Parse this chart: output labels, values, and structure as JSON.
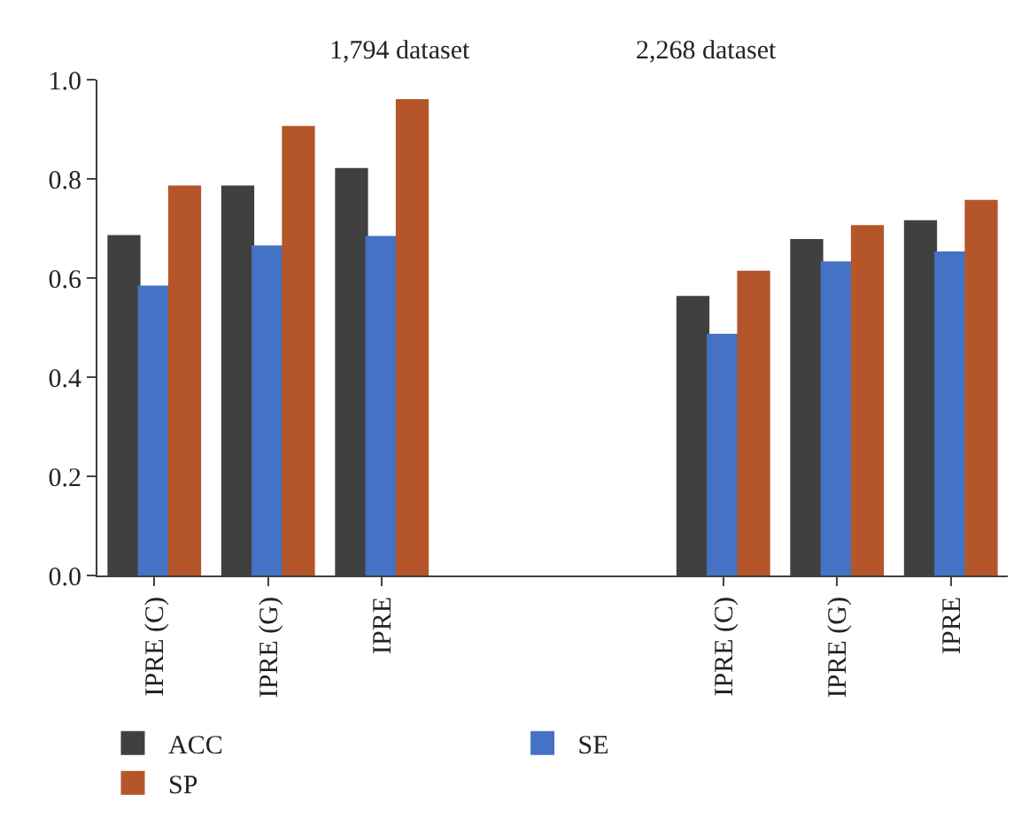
{
  "chart_data": {
    "type": "bar",
    "categories": [
      "IPRE (C)",
      "IPRE (G)",
      "IPRE",
      null,
      null,
      "IPRE (C)",
      "IPRE (G)",
      "IPRE"
    ],
    "series": [
      {
        "name": "ACC",
        "color": "#404040",
        "values": [
          0.684,
          0.784,
          0.819,
          null,
          null,
          0.561,
          0.676,
          0.714
        ]
      },
      {
        "name": "SE",
        "color": "#4472c4",
        "values": [
          0.582,
          0.663,
          0.682,
          null,
          null,
          0.485,
          0.631,
          0.651
        ]
      },
      {
        "name": "SP",
        "color": "#b5562a",
        "values": [
          0.784,
          0.904,
          0.958,
          null,
          null,
          0.612,
          0.704,
          0.755
        ]
      }
    ],
    "annotations": [
      "1,794 dataset",
      "2,268 dataset"
    ],
    "ylim": [
      0,
      1.0
    ],
    "yticks": [
      {
        "value": 0,
        "label": "0.0"
      },
      {
        "value": 0.2,
        "label": "0.2"
      },
      {
        "value": 0.4,
        "label": "0.4"
      },
      {
        "value": 0.6,
        "label": "0.6"
      },
      {
        "value": 0.8,
        "label": "0.8"
      },
      {
        "value": 1.0,
        "label": "1.0"
      }
    ],
    "legend": "bottom"
  }
}
